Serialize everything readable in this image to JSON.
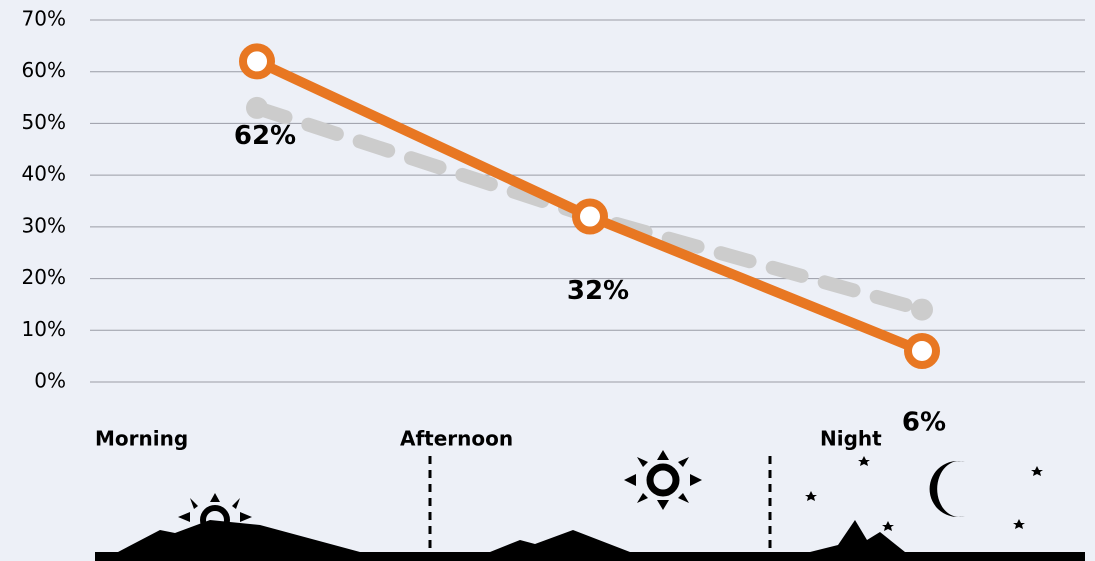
{
  "chart_data": {
    "type": "line",
    "categories": [
      "Morning",
      "Afternoon",
      "Night"
    ],
    "series": [
      {
        "color": "#cccccc",
        "dashed": true,
        "values": [
          53,
          32,
          14
        ]
      },
      {
        "color": "#e87722",
        "values": [
          62,
          32,
          6
        ],
        "value_labels": [
          "62%",
          "32%",
          "6%"
        ]
      }
    ],
    "ylim": [
      0,
      70
    ],
    "yticks": [
      {
        "value": 0,
        "label": "0%"
      },
      {
        "value": 10,
        "label": "10%"
      },
      {
        "value": 20,
        "label": "20%"
      },
      {
        "value": 30,
        "label": "30%"
      },
      {
        "value": 40,
        "label": "40%"
      },
      {
        "value": 50,
        "label": "50%"
      },
      {
        "value": 60,
        "label": "60%"
      },
      {
        "value": 70,
        "label": "70%"
      }
    ],
    "grid": true
  }
}
